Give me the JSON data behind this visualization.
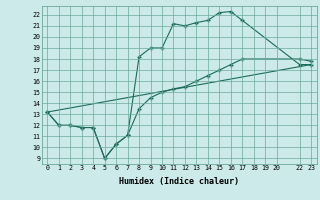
{
  "title": "",
  "xlabel": "Humidex (Indice chaleur)",
  "xlim": [
    -0.5,
    23.5
  ],
  "ylim": [
    8.5,
    22.8
  ],
  "xticks": [
    0,
    1,
    2,
    3,
    4,
    5,
    6,
    7,
    8,
    9,
    10,
    11,
    12,
    13,
    14,
    15,
    16,
    17,
    18,
    19,
    20,
    22,
    23
  ],
  "yticks": [
    9,
    10,
    11,
    12,
    13,
    14,
    15,
    16,
    17,
    18,
    19,
    20,
    21,
    22
  ],
  "background_color": "#cceaea",
  "grid_color": "#6aaa9a",
  "line_color": "#1a6b5a",
  "line1_x": [
    0,
    1,
    2,
    3,
    4,
    5,
    6,
    7,
    8,
    9,
    10,
    11,
    12,
    13,
    14,
    15,
    16,
    17,
    22,
    23
  ],
  "line1_y": [
    13.2,
    12.0,
    12.0,
    11.8,
    11.8,
    9.0,
    10.3,
    11.1,
    18.2,
    19.0,
    19.0,
    21.2,
    21.0,
    21.3,
    21.5,
    22.2,
    22.3,
    21.5,
    17.5,
    17.5
  ],
  "line2_x": [
    0,
    1,
    2,
    3,
    4,
    5,
    6,
    7,
    8,
    9,
    10,
    11,
    12,
    13,
    14,
    15,
    16,
    17,
    22,
    23
  ],
  "line2_y": [
    13.2,
    12.0,
    12.0,
    11.8,
    11.8,
    9.0,
    10.3,
    11.1,
    13.5,
    14.5,
    15.0,
    15.3,
    15.5,
    16.0,
    16.5,
    17.0,
    17.5,
    18.0,
    18.0,
    17.8
  ],
  "line3_x": [
    0,
    23
  ],
  "line3_y": [
    13.2,
    17.5
  ]
}
